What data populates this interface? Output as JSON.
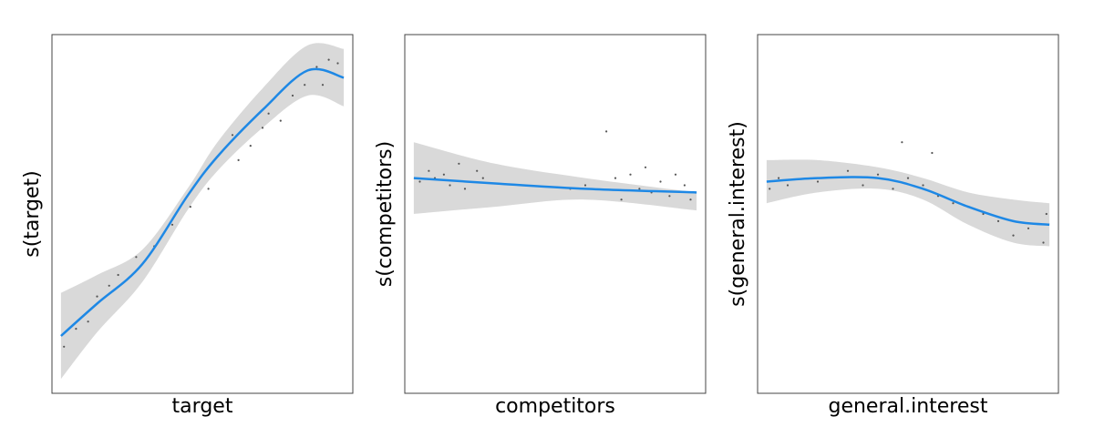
{
  "colors": {
    "line": "#1e88e5",
    "band": "#d9d9d9",
    "points": "#555555",
    "frame": "#444444"
  },
  "chart_data": [
    {
      "type": "line",
      "xlabel": "target",
      "ylabel": "s(target)",
      "xlim": [
        0,
        1
      ],
      "ylim": [
        0,
        1
      ],
      "grid": false,
      "fit": {
        "x": [
          0.03,
          0.15,
          0.3,
          0.45,
          0.55,
          0.7,
          0.85,
          0.97
        ],
        "y": [
          0.16,
          0.25,
          0.36,
          0.55,
          0.66,
          0.79,
          0.9,
          0.88
        ]
      },
      "band_upper": [
        0.28,
        0.33,
        0.4,
        0.57,
        0.7,
        0.85,
        0.97,
        0.96
      ],
      "band_lower": [
        0.04,
        0.17,
        0.31,
        0.51,
        0.62,
        0.74,
        0.83,
        0.8
      ],
      "points": [
        [
          0.04,
          0.13
        ],
        [
          0.08,
          0.18
        ],
        [
          0.12,
          0.2
        ],
        [
          0.15,
          0.27
        ],
        [
          0.19,
          0.3
        ],
        [
          0.22,
          0.33
        ],
        [
          0.28,
          0.38
        ],
        [
          0.34,
          0.41
        ],
        [
          0.4,
          0.47
        ],
        [
          0.46,
          0.52
        ],
        [
          0.52,
          0.57
        ],
        [
          0.6,
          0.72
        ],
        [
          0.62,
          0.65
        ],
        [
          0.66,
          0.69
        ],
        [
          0.7,
          0.74
        ],
        [
          0.72,
          0.78
        ],
        [
          0.76,
          0.76
        ],
        [
          0.8,
          0.83
        ],
        [
          0.84,
          0.86
        ],
        [
          0.88,
          0.91
        ],
        [
          0.92,
          0.93
        ],
        [
          0.95,
          0.92
        ],
        [
          0.9,
          0.86
        ]
      ]
    },
    {
      "type": "line",
      "xlabel": "competitors",
      "ylabel": "s(competitors)",
      "xlim": [
        0,
        1
      ],
      "ylim": [
        0,
        1
      ],
      "grid": false,
      "fit": {
        "x": [
          0.03,
          0.3,
          0.6,
          0.97
        ],
        "y": [
          0.6,
          0.585,
          0.57,
          0.56
        ]
      },
      "band_upper": [
        0.7,
        0.64,
        0.6,
        0.56
      ],
      "band_lower": [
        0.5,
        0.52,
        0.54,
        0.51
      ],
      "points": [
        [
          0.05,
          0.59
        ],
        [
          0.08,
          0.62
        ],
        [
          0.1,
          0.6
        ],
        [
          0.13,
          0.61
        ],
        [
          0.15,
          0.58
        ],
        [
          0.18,
          0.64
        ],
        [
          0.2,
          0.57
        ],
        [
          0.24,
          0.62
        ],
        [
          0.26,
          0.6
        ],
        [
          0.55,
          0.57
        ],
        [
          0.6,
          0.58
        ],
        [
          0.67,
          0.73
        ],
        [
          0.7,
          0.6
        ],
        [
          0.72,
          0.54
        ],
        [
          0.75,
          0.61
        ],
        [
          0.78,
          0.57
        ],
        [
          0.8,
          0.63
        ],
        [
          0.82,
          0.56
        ],
        [
          0.85,
          0.59
        ],
        [
          0.88,
          0.55
        ],
        [
          0.9,
          0.61
        ],
        [
          0.93,
          0.58
        ],
        [
          0.95,
          0.54
        ]
      ]
    },
    {
      "type": "line",
      "xlabel": "general.interest",
      "ylabel": "s(general.interest)",
      "xlim": [
        0,
        1
      ],
      "ylim": [
        0,
        1
      ],
      "grid": false,
      "fit": {
        "x": [
          0.03,
          0.2,
          0.4,
          0.55,
          0.7,
          0.85,
          0.97
        ],
        "y": [
          0.59,
          0.6,
          0.6,
          0.57,
          0.52,
          0.48,
          0.47
        ]
      },
      "band_upper": [
        0.65,
        0.65,
        0.63,
        0.6,
        0.56,
        0.54,
        0.53
      ],
      "band_lower": [
        0.53,
        0.56,
        0.57,
        0.54,
        0.47,
        0.42,
        0.41
      ],
      "points": [
        [
          0.04,
          0.57
        ],
        [
          0.07,
          0.6
        ],
        [
          0.1,
          0.58
        ],
        [
          0.2,
          0.59
        ],
        [
          0.3,
          0.62
        ],
        [
          0.35,
          0.58
        ],
        [
          0.4,
          0.61
        ],
        [
          0.45,
          0.57
        ],
        [
          0.48,
          0.7
        ],
        [
          0.5,
          0.6
        ],
        [
          0.55,
          0.58
        ],
        [
          0.58,
          0.67
        ],
        [
          0.6,
          0.55
        ],
        [
          0.65,
          0.53
        ],
        [
          0.7,
          0.52
        ],
        [
          0.75,
          0.5
        ],
        [
          0.8,
          0.48
        ],
        [
          0.85,
          0.44
        ],
        [
          0.9,
          0.46
        ],
        [
          0.95,
          0.42
        ],
        [
          0.96,
          0.5
        ]
      ]
    }
  ]
}
